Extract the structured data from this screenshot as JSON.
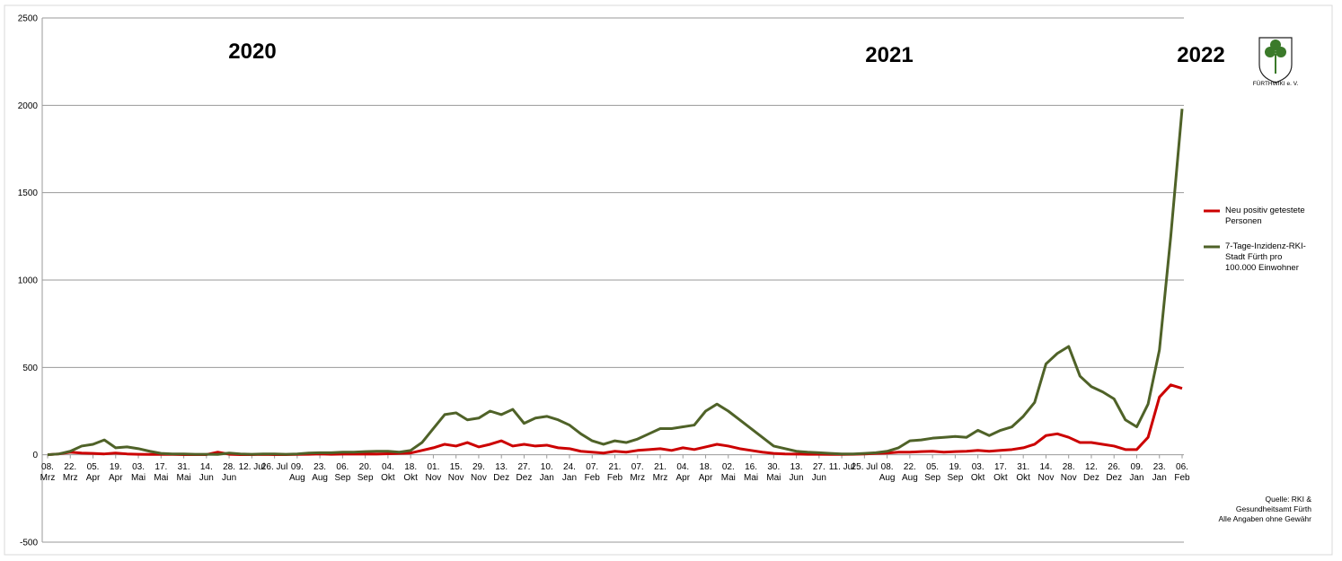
{
  "logo_text": "FÜRTHWIKI e. V.",
  "chart_data": {
    "type": "line",
    "annotations": [
      "2020",
      "2021",
      "2022"
    ],
    "source": [
      "Quelle: RKI &",
      "Gesundheitsamt Fürth",
      "Alle Angaben ohne Gewähr"
    ],
    "ylim": [
      -500,
      2500
    ],
    "yticks": [
      -500,
      0,
      500,
      1000,
      1500,
      2000,
      2500
    ],
    "grid": true,
    "legend": "right",
    "categories": [
      "08. Mrz",
      null,
      "22. Mrz",
      null,
      "05. Apr",
      null,
      "19. Apr",
      null,
      "03. Mai",
      null,
      "17. Mai",
      null,
      "31. Mai",
      null,
      "14. Jun",
      null,
      "28. Jun",
      null,
      "12. Jul",
      null,
      "26. Jul",
      null,
      "09. Aug",
      null,
      "23. Aug",
      null,
      "06. Sep",
      null,
      "20. Sep",
      null,
      "04. Okt",
      null,
      "18. Okt",
      null,
      "01. Nov",
      null,
      "15. Nov",
      null,
      "29. Nov",
      null,
      "13. Dez",
      null,
      "27. Dez",
      null,
      "10. Jan",
      null,
      "24. Jan",
      null,
      "07. Feb",
      null,
      "21. Feb",
      null,
      "07. Mrz",
      null,
      "21. Mrz",
      null,
      "04. Apr",
      null,
      "18. Apr",
      null,
      "02. Mai",
      null,
      "16. Mai",
      null,
      "30. Mai",
      null,
      "13. Jun",
      null,
      "27. Jun",
      null,
      "11. Jul",
      null,
      "25. Jul",
      null,
      "08. Aug",
      null,
      "22. Aug",
      null,
      "05. Sep",
      null,
      "19. Sep",
      null,
      "03. Okt",
      null,
      "17. Okt",
      null,
      "31. Okt",
      null,
      "14. Nov",
      null,
      "28. Nov",
      null,
      "12. Dez",
      null,
      "26. Dez",
      null,
      "09. Jan",
      null,
      "23. Jan",
      null,
      "06. Feb"
    ],
    "series": [
      {
        "name": "Neu positiv getestete Personen",
        "color": "#cc0000",
        "values": [
          0,
          5,
          15,
          10,
          8,
          5,
          10,
          5,
          3,
          2,
          2,
          2,
          1,
          1,
          1,
          15,
          3,
          1,
          1,
          2,
          1,
          1,
          2,
          3,
          5,
          3,
          4,
          4,
          5,
          4,
          6,
          8,
          10,
          25,
          40,
          60,
          50,
          70,
          45,
          60,
          80,
          50,
          60,
          50,
          55,
          40,
          35,
          20,
          15,
          10,
          20,
          15,
          25,
          30,
          35,
          25,
          40,
          30,
          45,
          60,
          50,
          35,
          25,
          15,
          8,
          5,
          4,
          3,
          3,
          2,
          2,
          3,
          5,
          8,
          10,
          15,
          15,
          18,
          20,
          15,
          18,
          20,
          25,
          20,
          25,
          30,
          40,
          60,
          110,
          120,
          100,
          70,
          70,
          60,
          50,
          30,
          30,
          100,
          330,
          400,
          380
        ]
      },
      {
        "name": "7-Tage-Inzidenz-RKI-Stadt Fürth pro 100.000 Einwohner",
        "color": "#4f6228",
        "values": [
          0,
          5,
          20,
          50,
          60,
          85,
          40,
          45,
          35,
          20,
          8,
          5,
          5,
          3,
          3,
          2,
          10,
          5,
          3,
          5,
          5,
          3,
          5,
          10,
          12,
          12,
          15,
          15,
          18,
          20,
          20,
          15,
          25,
          70,
          150,
          230,
          240,
          200,
          210,
          250,
          230,
          260,
          180,
          210,
          220,
          200,
          170,
          120,
          80,
          60,
          80,
          70,
          90,
          120,
          150,
          150,
          160,
          170,
          250,
          290,
          250,
          200,
          150,
          100,
          50,
          35,
          20,
          15,
          12,
          8,
          5,
          5,
          8,
          12,
          20,
          40,
          80,
          85,
          95,
          100,
          105,
          100,
          140,
          110,
          140,
          160,
          220,
          300,
          520,
          580,
          620,
          450,
          390,
          360,
          320,
          200,
          160,
          290,
          600,
          1250,
          1980
        ]
      }
    ]
  }
}
